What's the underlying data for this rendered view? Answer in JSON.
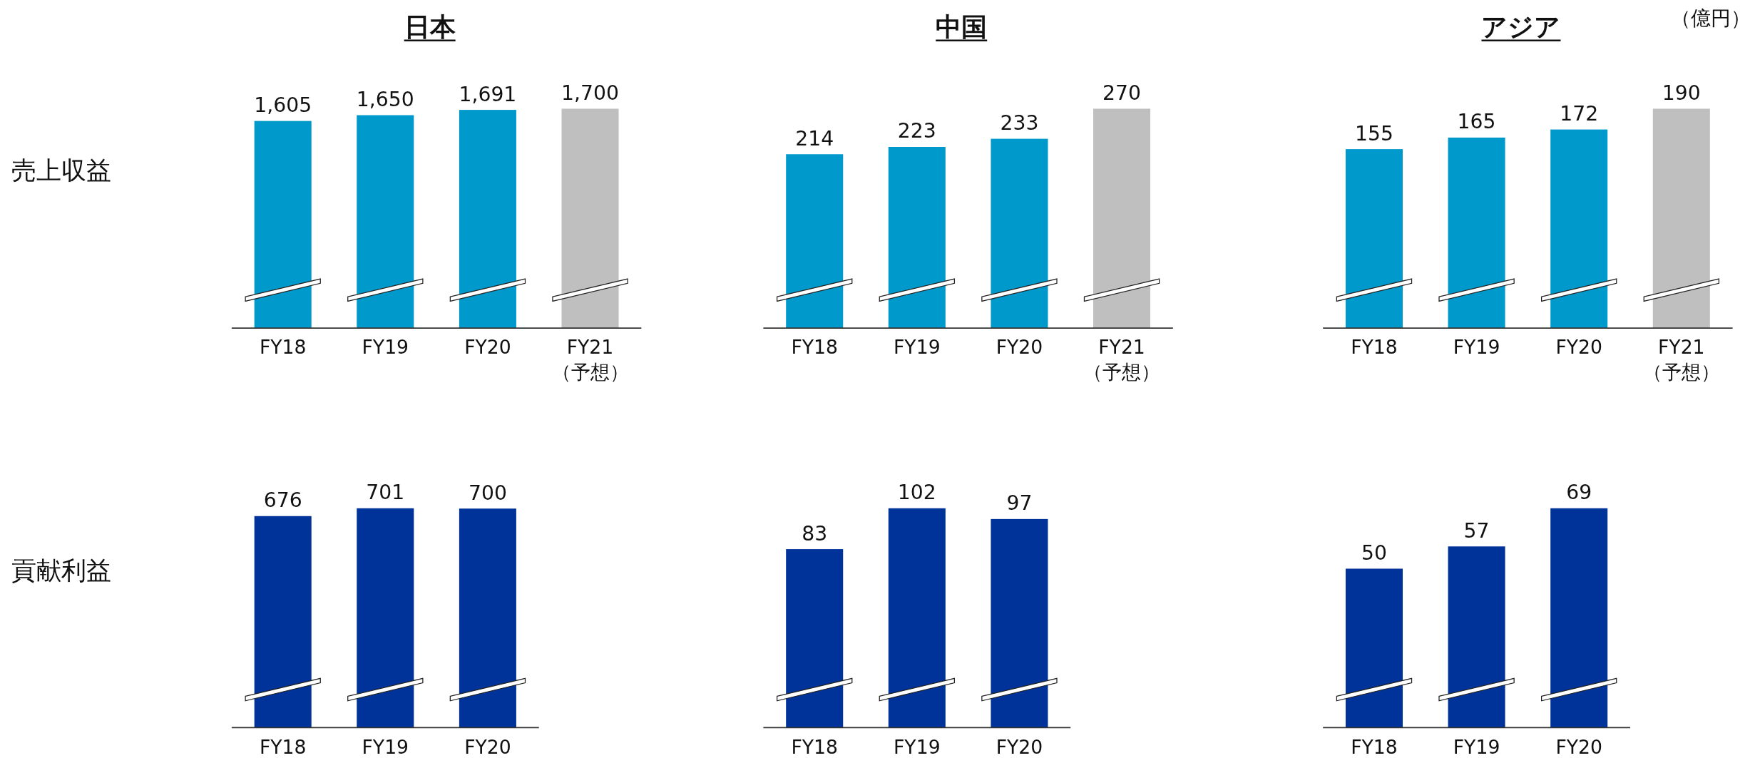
{
  "chart_data": [
    {
      "type": "bar",
      "title": "日本",
      "ylabel": "売上収益",
      "categories": [
        "FY18",
        "FY19",
        "FY20",
        "FY21\n（予想）"
      ],
      "values": [
        1605,
        1650,
        1691,
        1700
      ],
      "value_labels": [
        "1,605",
        "1,650",
        "1,691",
        "1,700"
      ],
      "colors": [
        "#0099cc",
        "#0099cc",
        "#0099cc",
        "#bfbfbf"
      ]
    },
    {
      "type": "bar",
      "title": "中国",
      "categories": [
        "FY18",
        "FY19",
        "FY20",
        "FY21\n（予想）"
      ],
      "values": [
        214,
        223,
        233,
        270
      ],
      "colors": [
        "#0099cc",
        "#0099cc",
        "#0099cc",
        "#bfbfbf"
      ],
      "data_labels": true
    },
    {
      "type": "bar",
      "title": "アジア",
      "categories": [
        "FY18",
        "FY19",
        "FY20",
        "FY21\n（予想）"
      ],
      "values": [
        155,
        165,
        172,
        190
      ],
      "colors": [
        "#0099cc",
        "#0099cc",
        "#0099cc",
        "#bfbfbf"
      ],
      "data_labels": true,
      "annotations": [
        "（億円）"
      ]
    },
    {
      "type": "bar",
      "ylabel": "貢献利益",
      "categories": [
        "FY18",
        "FY19",
        "FY20"
      ],
      "values": [
        676,
        701,
        700
      ],
      "colors": [
        "#003399",
        "#003399",
        "#003399"
      ],
      "data_labels": true
    },
    {
      "type": "bar",
      "categories": [
        "FY18",
        "FY19",
        "FY20"
      ],
      "values": [
        83,
        102,
        97
      ],
      "colors": [
        "#003399",
        "#003399",
        "#003399"
      ],
      "data_labels": true
    },
    {
      "type": "bar",
      "categories": [
        "FY18",
        "FY19",
        "FY20"
      ],
      "values": [
        50,
        57,
        69
      ],
      "colors": [
        "#003399",
        "#003399",
        "#003399"
      ],
      "data_labels": true
    }
  ]
}
